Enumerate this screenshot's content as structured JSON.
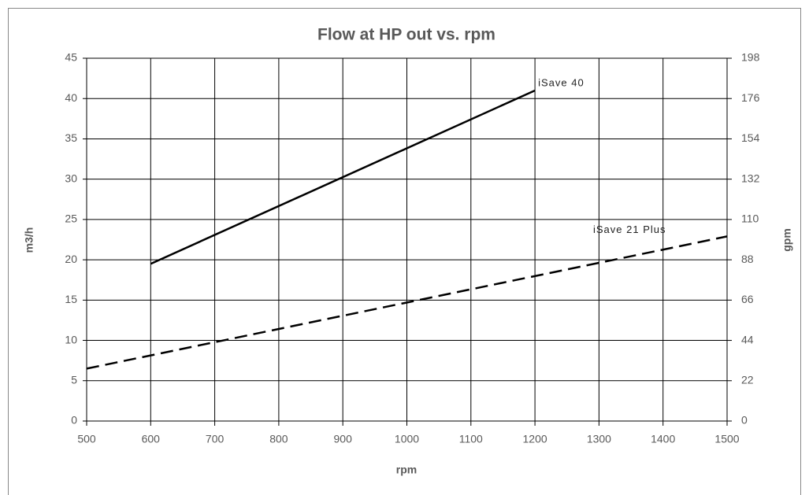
{
  "chart_data": {
    "type": "line",
    "title": "Flow at HP out vs. rpm",
    "x_label": "rpm",
    "y_label": "m3/h",
    "y2_label": "gpm",
    "xlim": [
      500,
      1500
    ],
    "xticks": [
      500,
      600,
      700,
      800,
      900,
      1000,
      1100,
      1200,
      1300,
      1400,
      1500
    ],
    "ylim": [
      0,
      45
    ],
    "yticks": [
      0,
      5,
      10,
      15,
      20,
      25,
      30,
      35,
      40,
      45
    ],
    "y2lim": [
      0,
      198
    ],
    "y2ticks": [
      0,
      22,
      44,
      66,
      88,
      110,
      132,
      154,
      176,
      198
    ],
    "grid": true,
    "series": [
      {
        "name": "iSave 40",
        "color": "#000000",
        "dashed": false,
        "x": [
          600,
          1200
        ],
        "values": [
          19.5,
          41
        ]
      },
      {
        "name": "iSave 21 Plus",
        "color": "#000000",
        "dashed": true,
        "x": [
          500,
          1500
        ],
        "values": [
          6.5,
          22.9
        ]
      }
    ]
  }
}
